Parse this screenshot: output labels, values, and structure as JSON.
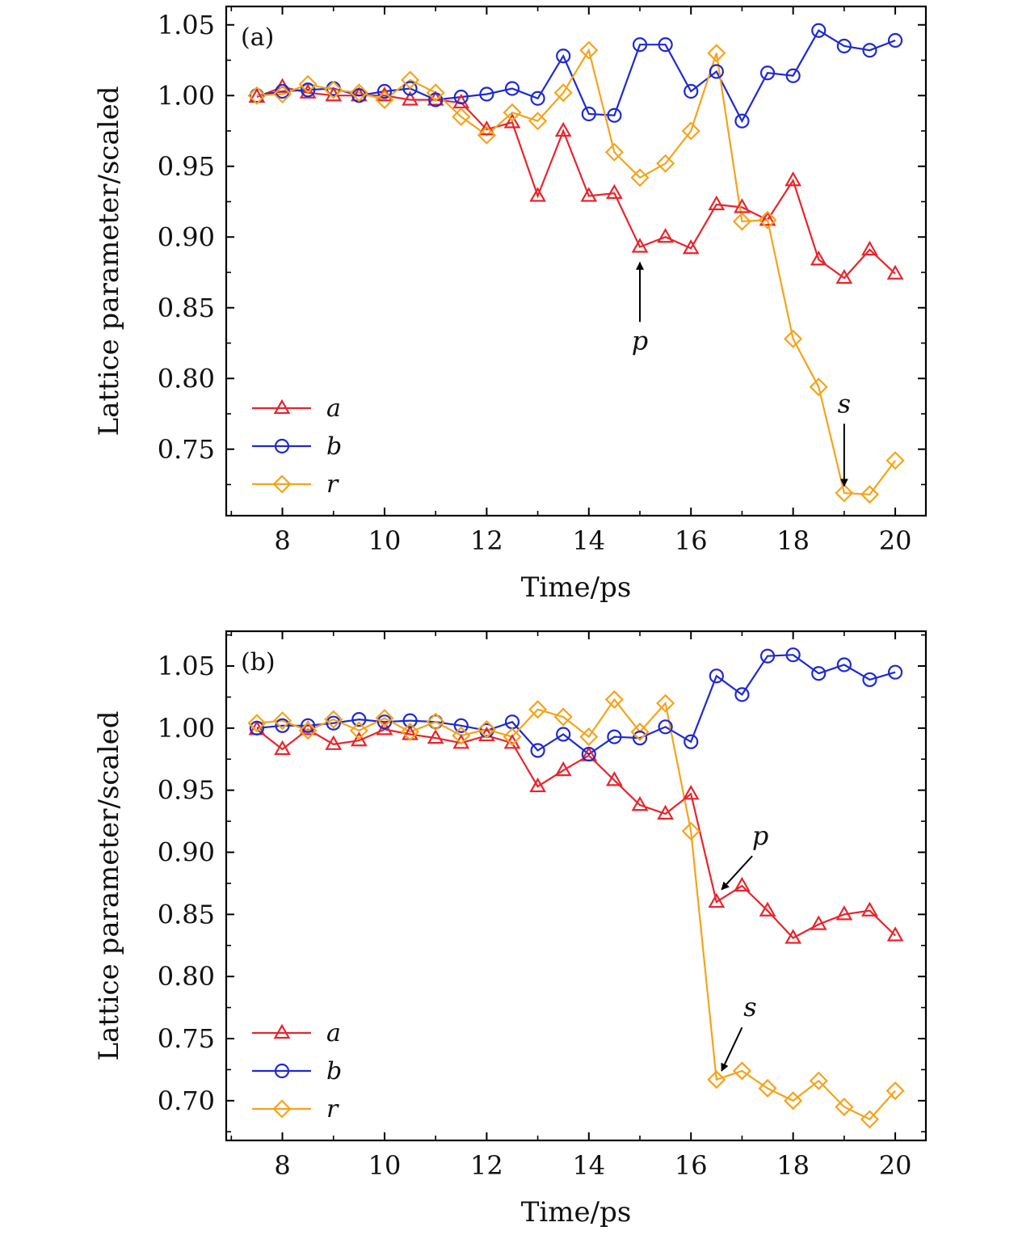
{
  "chart_data": [
    {
      "type": "line",
      "panel_label": "(a)",
      "xlabel": "Time/ps",
      "ylabel": "Lattice parameter/scaled",
      "xlim": [
        6.9,
        20.6
      ],
      "ylim": [
        0.703,
        1.063
      ],
      "xticks": [
        8,
        10,
        12,
        14,
        16,
        18,
        20
      ],
      "xtick_labels": [
        "8",
        "10",
        "12",
        "14",
        "16",
        "18",
        "20"
      ],
      "yticks": [
        0.75,
        0.8,
        0.85,
        0.9,
        0.95,
        1.0,
        1.05
      ],
      "ytick_labels": [
        "0.75",
        "0.80",
        "0.85",
        "0.90",
        "0.95",
        "1.00",
        "1.05"
      ],
      "x": [
        7.5,
        8,
        8.5,
        9,
        9.5,
        10,
        10.5,
        11,
        11.5,
        12,
        12.5,
        13,
        13.5,
        14,
        14.5,
        15,
        15.5,
        16,
        16.5,
        17,
        17.5,
        18,
        18.5,
        19,
        19.5,
        20
      ],
      "series": [
        {
          "name": "a",
          "marker": "triangle",
          "color": "#e8242c",
          "values": [
            0.999,
            1.006,
            1.002,
            1.0,
            1.0,
            1.0,
            0.997,
            0.997,
            0.995,
            0.976,
            0.981,
            0.929,
            0.975,
            0.929,
            0.931,
            0.893,
            0.9,
            0.892,
            0.923,
            0.921,
            0.912,
            0.94,
            0.884,
            0.871,
            0.891,
            0.874
          ]
        },
        {
          "name": "b",
          "marker": "circle",
          "color": "#1f2ad1",
          "values": [
            1.0,
            1.003,
            1.004,
            1.005,
            1.0,
            1.003,
            1.005,
            0.997,
            0.999,
            1.001,
            1.005,
            0.998,
            1.028,
            0.987,
            0.986,
            1.036,
            1.036,
            1.003,
            1.017,
            0.982,
            1.016,
            1.014,
            1.046,
            1.035,
            1.032,
            1.039
          ]
        },
        {
          "name": "r",
          "marker": "diamond",
          "color": "#f5a31a",
          "values": [
            1.0,
            1.001,
            1.008,
            1.004,
            1.002,
            0.997,
            1.011,
            1.002,
            0.985,
            0.972,
            0.988,
            0.982,
            1.002,
            1.032,
            0.96,
            0.942,
            0.952,
            0.975,
            1.03,
            0.911,
            0.912,
            0.828,
            0.794,
            0.719,
            0.718,
            0.742
          ]
        }
      ],
      "annotations": [
        {
          "label": "p",
          "x": 15.0,
          "y_from": 0.84,
          "y_to": 0.882
        },
        {
          "label": "s",
          "x": 19.0,
          "y_from": 0.768,
          "y_to": 0.724
        }
      ],
      "legend": "bottom-left"
    },
    {
      "type": "line",
      "panel_label": "(b)",
      "xlabel": "Time/ps",
      "ylabel": "Lattice parameter/scaled",
      "xlim": [
        6.9,
        20.6
      ],
      "ylim": [
        0.668,
        1.078
      ],
      "xticks": [
        8,
        10,
        12,
        14,
        16,
        18,
        20
      ],
      "xtick_labels": [
        "8",
        "10",
        "12",
        "14",
        "16",
        "18",
        "20"
      ],
      "yticks": [
        0.7,
        0.75,
        0.8,
        0.85,
        0.9,
        0.95,
        1.0,
        1.05
      ],
      "ytick_labels": [
        "0.70",
        "0.75",
        "0.80",
        "0.85",
        "0.90",
        "0.95",
        "1.00",
        "1.05"
      ],
      "x": [
        7.5,
        8,
        8.5,
        9,
        9.5,
        10,
        10.5,
        11,
        11.5,
        12,
        12.5,
        13,
        13.5,
        14,
        14.5,
        15,
        15.5,
        16,
        16.5,
        17,
        17.5,
        18,
        18.5,
        19,
        19.5,
        20
      ],
      "series": [
        {
          "name": "a",
          "marker": "triangle",
          "color": "#e8242c",
          "values": [
            0.999,
            0.983,
            0.999,
            0.987,
            0.99,
            0.999,
            0.995,
            0.992,
            0.988,
            0.994,
            0.988,
            0.953,
            0.966,
            0.978,
            0.958,
            0.938,
            0.931,
            0.947,
            0.86,
            0.873,
            0.853,
            0.831,
            0.842,
            0.85,
            0.853,
            0.833
          ]
        },
        {
          "name": "b",
          "marker": "circle",
          "color": "#1f2ad1",
          "values": [
            1.0,
            1.002,
            1.002,
            1.004,
            1.007,
            1.005,
            1.006,
            1.005,
            1.002,
            0.998,
            1.005,
            0.982,
            0.995,
            0.979,
            0.993,
            0.992,
            1.001,
            0.989,
            1.042,
            1.027,
            1.058,
            1.059,
            1.044,
            1.051,
            1.039,
            1.045
          ]
        },
        {
          "name": "r",
          "marker": "diamond",
          "color": "#f5a31a",
          "values": [
            1.004,
            1.006,
            0.998,
            1.007,
            0.998,
            1.008,
            0.997,
            1.005,
            0.994,
            0.999,
            0.993,
            1.015,
            1.009,
            0.993,
            1.023,
            0.997,
            1.02,
            0.917,
            0.717,
            0.724,
            0.71,
            0.7,
            0.716,
            0.695,
            0.685,
            0.708
          ]
        }
      ],
      "annotations": [
        {
          "label": "p",
          "x_from": 17.2,
          "y_from": 0.897,
          "x_to": 16.6,
          "y_to": 0.87
        },
        {
          "label": "s",
          "x_from": 17.0,
          "y_from": 0.759,
          "x_to": 16.6,
          "y_to": 0.724
        }
      ],
      "legend": "bottom-left"
    }
  ]
}
